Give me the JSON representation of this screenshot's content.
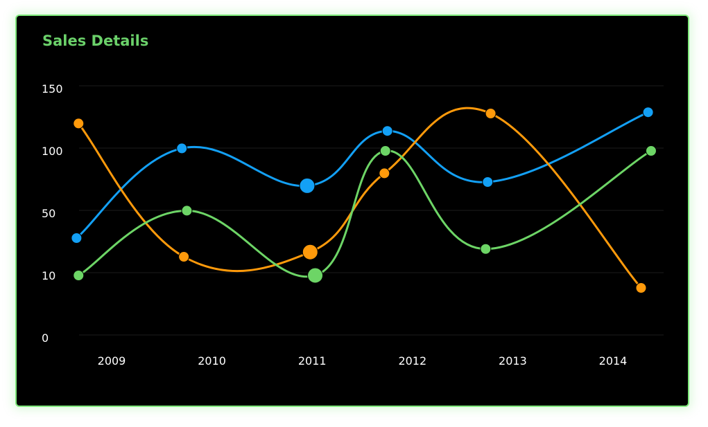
{
  "card": {
    "title": "Sales Details"
  },
  "colors": {
    "background": "#000000",
    "border": "#7ee87a",
    "title": "#6bd16a",
    "grid": "#1c1c1c"
  },
  "chart_data": {
    "type": "line",
    "title": "Sales Details",
    "xlabel": "",
    "ylabel": "",
    "x_ticks": [
      "2009",
      "2010",
      "2011",
      "2012",
      "2013",
      "2014"
    ],
    "y_ticks": [
      {
        "label": "150",
        "value": 150
      },
      {
        "label": "100",
        "value": 100
      },
      {
        "label": "50",
        "value": 50
      },
      {
        "label": "10",
        "value": 10
      },
      {
        "label": "0",
        "value": 0
      }
    ],
    "ylim": [
      0,
      150
    ],
    "grid": "horizontal",
    "legend": "none",
    "smooth": true,
    "series": [
      {
        "color": "#13a0f5",
        "points": [
          {
            "x": 2008.65,
            "y": 34
          },
          {
            "x": 2009.7,
            "y": 102
          },
          {
            "x": 2010.95,
            "y": 72,
            "highlight": true
          },
          {
            "x": 2011.75,
            "y": 116
          },
          {
            "x": 2012.75,
            "y": 75
          },
          {
            "x": 2014.35,
            "y": 131
          }
        ]
      },
      {
        "color": "#ff9a0b",
        "points": [
          {
            "x": 2008.67,
            "y": 122
          },
          {
            "x": 2009.72,
            "y": 22
          },
          {
            "x": 2010.98,
            "y": 25,
            "highlight": true
          },
          {
            "x": 2011.72,
            "y": 82
          },
          {
            "x": 2012.78,
            "y": 130
          },
          {
            "x": 2014.28,
            "y": 8
          }
        ]
      },
      {
        "color": "#6dd566",
        "points": [
          {
            "x": 2008.67,
            "y": 10
          },
          {
            "x": 2009.75,
            "y": 52
          },
          {
            "x": 2011.03,
            "y": 10,
            "highlight": true
          },
          {
            "x": 2011.73,
            "y": 100
          },
          {
            "x": 2012.73,
            "y": 27
          },
          {
            "x": 2014.38,
            "y": 100
          }
        ]
      }
    ]
  }
}
